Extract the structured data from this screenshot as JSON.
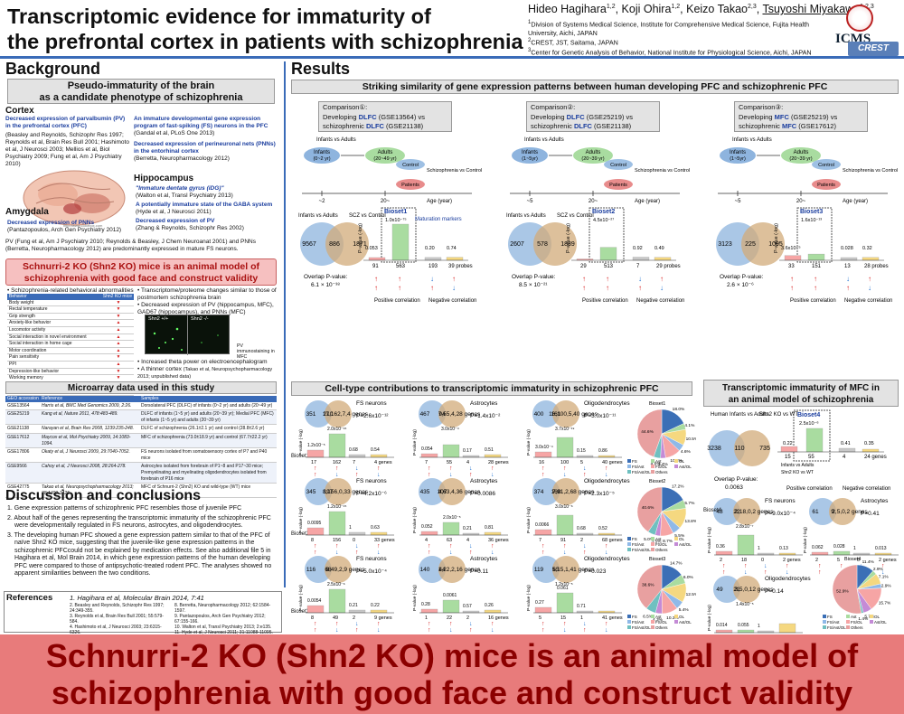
{
  "header": {
    "title_line1": "Transcriptomic evidence for immaturity of",
    "title_line2": "the prefrontal cortex in patients with schizophrenia",
    "authors_plain": "Hideo Hagihara",
    "authors_sup1": "1,2",
    "authors_mid": ", Koji Ohira",
    "authors_sup2": "1,2",
    "authors_mid2": ", Keizo Takao",
    "authors_sup3": "2,3",
    "authors_mid3": ", ",
    "authors_under": "Tsuyoshi Miyakawa",
    "authors_sup4": "1,2,3",
    "affil1": "Division of Systems Medical Science, Institute for Comprehensive Medical Science, Fujita Health University, Aichi, JAPAN",
    "affil2": "CREST, JST, Saitama, JAPAN",
    "affil3": "Center for Genetic Analysis of Behavior, National Institute for Physiological Science, Aichi, JAPAN",
    "logo1": "ICMS",
    "logo2": "CREST"
  },
  "background": {
    "heading": "Background",
    "box_title1": "Pseudo-immaturity of the brain",
    "box_title2": "as a candidate phenotype of schizophrenia",
    "cortex": "Cortex",
    "c1_title": "Decreased expression of parvalbumin (PV) in the prefrontal cortex (PFC)",
    "c1_refs": "(Beasley and Reynolds, Schizophr Res 1997; Reynolds et al, Brain Res Bull 2001; Hashimoto et al, J Neurosci 2003; Mellios et al, Biol Psychiatry 2009; Fung et al, Am J Psychiatry 2010)",
    "c2_title": "An immature developmental gene expression program of fast-spiking (FS) neurons in the PFC",
    "c2_refs": "(Gandal et al, PLoS One 2013)",
    "c3_title": "Decreased expression of perineuronal nets (PNNs) in the entorhinal cortex",
    "c3_refs": "(Berretta, Neuropharmacology 2012)",
    "hippocampus": "Hippocampus",
    "h1_title": "\"Immature dentate gyrus (iDG)\"",
    "h1_refs": "(Walton et al, Transl Psychiatry 2013)",
    "h2_title": "A potentially immature state of the GABA system",
    "h2_refs": "(Hyde et al, J Neurosci 2011)",
    "h3_title": "Decreased expression of PV",
    "h3_refs": "(Zhang & Reynolds, Schizophr Res 2002)",
    "amygdala": "Amygdala",
    "a1_title": "Decreased expression of PNNs",
    "a1_refs": "(Pantazopoulos, Arch Gen Psychiatry 2012)",
    "pv_note": "PV (Fung et al, Am J Psychiatry 2010; Reynolds & Beasley, J Chem Neuroanat 2001) and PNNs (Berretta, Neuropharmacology 2012) are predominantly expressed in mature FS neurons.",
    "brain_watermark": "http://www.colorbox.com"
  },
  "shn2": {
    "box_line1": "Schnurri-2 KO (Shn2 KO) mice is an animal model of",
    "box_line2": "schizophrenia with good face and construct validity",
    "bullet1": "Schizophrenia-related behavioral abnormalities",
    "table_h1": "Behavior",
    "table_h2": "Shn2 KO mice",
    "behaviors": [
      "Body weight",
      "Rectal temperature",
      "Grip strength",
      "Anxiety-like behavior",
      "Locomotor activity",
      "Social interaction in novel environment",
      "Social interaction in home cage",
      "Motor coordination",
      "Pain sensitivity",
      "PPI",
      "Depression-like behavior",
      "Working memory",
      "Reference memory",
      "Remote memory"
    ],
    "bullet2": "Transcriptome/proteome changes similar to those of postmortem schizophrenia brain",
    "bullet3": "Decreased expression of PV (hippocampus, MFC), GAD67 (hippocampus), and PNNs (MFC)",
    "img_label1": "Shn2 +/+",
    "img_label2": "Shn2 -/-",
    "img_caption": "PV immunostaining in MFC",
    "bullet4": "Increased theta power on electroencephalogram",
    "bullet5": "A thinner cortex",
    "bullet5_ref": "(Takao et al, Neuropsychopharmacology 2013; unpublished data)"
  },
  "microarray": {
    "heading": "Microarray data used in this study",
    "cols": [
      "GEO accession",
      "Reference",
      "Samples"
    ],
    "rows": [
      [
        "GSE13564",
        "Harris et al, BMC Med Genomics 2009, 2:26.",
        "Dorsolateral PFC (DLFC) of infants (0~2 yr) and adults (20~49 yr)"
      ],
      [
        "GSE25219",
        "Kang et al, Nature 2011, 478:483-489.",
        "DLFC of infants (1~5 yr) and adults (20~39 yr); Medial PFC (MFC) of infants (1~5 yr) and adults (20~39 yr)"
      ],
      [
        "GSE21138",
        "Narayan et al, Brain Res 2008, 1239:235-248.",
        "DLFC of schizophrenia (26.1±2.1 yr) and control (28.8±2.6 yr)"
      ],
      [
        "GSE17612",
        "Maycox et al, Mol Psychiatry 2009, 14:1083-1094.",
        "MFC of schizophrenia (73.0±18.9 yr) and control (67.7±22.2 yr)"
      ],
      [
        "GSE17806",
        "Okaty et al, J Neurosci 2009, 29:7040-7052.",
        "FS neurons isolated from somatosensory cortex of P7 and P40 mice"
      ],
      [
        "GSE9566",
        "Cahoy et al, J Neurosci 2008, 28:264-278.",
        "Astrocytes isolated from forebrain of P1~8 and P17~30 mice; Premyelinating and myelinating oligodendrocytes isolated from forebrain of P16 mice"
      ],
      [
        "GSE42775",
        "Takao et al, Neuropsychopharmacology 2013; 38:1409-1425.",
        "MFC of Schnurri-2 (Shn2) KO and wild-type (WT) mice"
      ]
    ]
  },
  "discussion": {
    "heading": "Discussion and conclusions",
    "items": [
      "1. Gene expression patterns of schizophrenic PFC resembles those of juvenile PFC",
      "2. About half of the genes representing the transcriptomic immaturity of the schizophrenic PFC were developmentally regulated in FS neurons, astrocytes, and oligodendrocytes.",
      "3. The developing human PFC showed a gene expression pattern similar to that of the PFC of naïve Shn2 KO mice, suggesting that the juvenile-like gene expression patterns in the schizophrenic PFCcould not be explained by medication effects. See also additional file 5 in Hagihara et al, Mol Brain 2014, in which gene expression patterns of the human developing PFC were compared to those of antipsychotic-treated rodent PFC. The analyses showed no apparent similarities between the two conditions."
    ]
  },
  "references": {
    "heading": "References",
    "first": "1. Hagihara et al, Molecular Brain 2014, 7:41",
    "col1": [
      "2. Beasley and Reynolds, Schizophr Res 1997; 24:349-355.",
      "3. Reynolds et al, Brain Res Bull 2001; 55:579-584.",
      "4. Hashimoto et al, J Neurosci 2003; 23:6315-6326.",
      "5. Mellios et al, Biol Psychiatry 2009; 65:1006-1014.",
      "6. Fung et al, Am J Psychiatry 2010; 167:1479-1488.",
      "7. Gandal et al, PLoS One 2013; 7:e41215."
    ],
    "col2": [
      "8. Berretta, Neuropharmacology 2012; 62:1584-1597.",
      "9. Pantazopoulos, Arch Gen Psychiatry 2012; 67:155-166.",
      "10. Walton et al, Transl Psychiatry 2013; 2:e135.",
      "11. Hyde et al, J Neurosci 2011; 31:11088-11095.",
      "12. Zhang & Reynolds, Schizophr Res 2002; 55:1-10.",
      "13. Takao et al, Neuropsychopharmacology 2013; 38:1409-1425."
    ]
  },
  "results": {
    "heading": "Results",
    "section1": "Striking similarity of gene expression patterns between human developing PFC and schizophrenic PFC",
    "section2": "Cell-type contributions to transcriptomic immaturity in schizophrenic PFC",
    "section3_line1": "Transcriptomic immaturity of MFC in",
    "section3_line2": "an animal model of schizophrenia"
  },
  "comparisons": [
    {
      "title": "Comparison①:",
      "line2a": "Developing ",
      "line2b": "DLFC",
      "line2c": " (GSE13564) vs",
      "line3a": "schizophrenic ",
      "line3b": "DLFC",
      "line3c": " (GSE21138)",
      "infants": "Infants",
      "infants_age": "(0~2 yr)",
      "adults": "Adults",
      "adults_age": "(20~49 yr)",
      "ia_label": "Infants vs Adults",
      "sc_label": "Schizophrenia vs Control",
      "control": "Control",
      "patients": "Patients",
      "tick1": "~2",
      "tick2": "20~",
      "age_label": "Age (year)",
      "v_left": "Infants vs Adults",
      "v_right": "SCZ vs Control",
      "n1": "9567",
      "n2": "886",
      "n3": "1871",
      "overlap": "Overlap P-value:",
      "overlap_p": "6.1 × 10⁻³⁸",
      "bioset": "Bioset1",
      "topp": "1.0x10⁻⁷⁵",
      "p1": "0.053",
      "p3": "0.20",
      "p4": "0.74",
      "c1": "91",
      "c2": "563",
      "c3": "193",
      "c4": "39 probes",
      "pos": "Positive correlation",
      "neg": "Negative correlation",
      "marker": "Maturation markers",
      "h_vals": [
        0.053,
        75,
        0.2,
        0.74
      ]
    },
    {
      "title": "Comparison②:",
      "line2a": "Developing ",
      "line2b": "DLFC",
      "line2c": " (GSE25219) vs",
      "line3a": "schizophrenic ",
      "line3b": "DLFC",
      "line3c": " (GSE21138)",
      "infants": "Infants",
      "infants_age": "(1~5yr)",
      "adults": "Adults",
      "adults_age": "(20~39 yr)",
      "ia_label": "Infants vs Adults",
      "sc_label": "Schizophrenia vs Control",
      "control": "Control",
      "patients": "Patients",
      "tick1": "~5",
      "tick2": "20~",
      "age_label": "Age (year)",
      "v_left": "Infants vs Adults",
      "v_right": "SCZ vs Control",
      "n1": "2607",
      "n2": "578",
      "n3": "1839",
      "overlap": "Overlap P-value:",
      "overlap_p": "8.5 × 10⁻²¹",
      "bioset": "Bioset2",
      "topp": "4.5x10⁻²⁷",
      "p1": "",
      "p3": "0.92",
      "p4": "0.49",
      "c1": "29",
      "c2": "513",
      "c3": "7",
      "c4": "29 probes",
      "pos": "Positive correlation",
      "neg": "Negative correlation",
      "marker": "",
      "h_vals": [
        0,
        27,
        0.92,
        0.49
      ]
    },
    {
      "title": "Comparison③:",
      "line2a": "Developing ",
      "line2b": "MFC",
      "line2c": " (GSE25219) vs",
      "line3a": "schizophrenic ",
      "line3b": "MFC",
      "line3c": " (GSE17612)",
      "infants": "Infants",
      "infants_age": "(1~5yr)",
      "adults": "Adults",
      "adults_age": "(20~39 yr)",
      "ia_label": "Infants vs Adults",
      "sc_label": "Schizophrenia vs Control",
      "control": "Control",
      "patients": "Patients",
      "tick1": "~5",
      "tick2": "20~",
      "age_label": "Age (year)",
      "v_left": "",
      "v_right": "",
      "n1": "3123",
      "n2": "225",
      "n3": "1095",
      "overlap": "Overlap P-value:",
      "overlap_p": "2.6 × 10⁻⁶",
      "bioset": "Bioset3",
      "topp": "1.6x10⁻¹³",
      "p1": "3.6x10⁻⁵",
      "p3": "0.028",
      "p4": "0.32",
      "c1": "33",
      "c2": "151",
      "c3": "13",
      "c4": "28 probes",
      "pos": "Positive correlation",
      "neg": "Negative correlation",
      "marker": "",
      "h_vals": [
        4.4,
        13,
        0.028,
        0.32
      ]
    }
  ],
  "celltype": {
    "rows": [
      {
        "bioset": "Bioset1",
        "fs": {
          "a": "351",
          "b": "210",
          "c": [
            "17",
            "162",
            "7",
            "4 genes"
          ],
          "p": "P=2.6x10⁻¹²",
          "top": "2.0x10⁻¹⁶",
          "v": [
            "1.2x10⁻⁵",
            "",
            "0.68",
            "0.54"
          ]
        },
        "ast": {
          "a": "467",
          "b": "94",
          "c": [
            "7",
            "55",
            "4",
            "28 genes"
          ],
          "p": "P=1.4x10⁻²",
          "top": "3.0x10⁻⁴",
          "v": [
            "0.054",
            "",
            "0.17",
            "0.51"
          ]
        },
        "ol": {
          "a": "400",
          "b": "161",
          "c": [
            "16",
            "100",
            "5",
            "40 genes"
          ],
          "p": "P=3.0x10⁻¹¹",
          "top": "3.7x10⁻¹⁹",
          "v": [
            "3.0x10⁻⁴",
            "",
            "0.15",
            "0.86"
          ]
        },
        "pie": [
          "18.0%",
          "4.1%",
          "10.5%",
          "4.6%",
          "10.2%",
          "3.4%",
          "4.6%",
          "44.6%"
        ]
      },
      {
        "bioset": "Bioset2",
        "fs": {
          "a": "345",
          "b": "197",
          "c": [
            "8",
            "156",
            "0",
            "33 genes"
          ],
          "p": "P=4.2x10⁻⁶",
          "top": "1.2x10⁻¹⁵",
          "v": [
            "0.0095",
            "",
            "1",
            "0.63"
          ]
        },
        "ast": {
          "a": "435",
          "b": "107",
          "c": [
            "4",
            "63",
            "4",
            "36 genes"
          ],
          "p": "P=0.0086",
          "top": "",
          "v": [
            "0.052",
            "2.0x10⁻⁵",
            "0.21",
            "0.81"
          ]
        },
        "ol": {
          "a": "374",
          "b": "168",
          "c": [
            "7",
            "91",
            "2",
            "68 genes"
          ],
          "p": "P=2.3x10⁻⁵",
          "top": "3.0x10⁻⁶",
          "v": [
            "0.0066",
            "",
            "0.68",
            "0.52"
          ]
        },
        "pie": [
          "17.2%",
          "5.7%",
          "13.8%",
          "5.5%",
          "8.7%",
          "3.5%",
          "5.0%",
          "40.6%"
        ]
      },
      {
        "bioset": "Bioset3",
        "fs": {
          "a": "116",
          "b": "68",
          "c": [
            "8",
            "49",
            "2",
            "9 genes"
          ],
          "p": "P=5.0x10⁻⁴",
          "top": "2.5x10⁻⁶",
          "v": [
            "0.0054",
            "",
            "0.21",
            "0.22"
          ]
        },
        "ast": {
          "a": "140",
          "b": "44",
          "c": [
            "1",
            "22",
            "2",
            "16 genes"
          ],
          "p": "P=0.11",
          "top": "",
          "v": [
            "0.28",
            "0.0061",
            "0.57",
            "0.26"
          ]
        },
        "ol": {
          "a": "119",
          "b": "65",
          "c": [
            "5",
            "15",
            "1",
            "41 genes"
          ],
          "p": "P=0.023",
          "top": "1.2x10⁻⁵",
          "v": [
            "0.27",
            "0.061",
            "0.71",
            ""
          ]
        },
        "pie": [
          "14.7%",
          "6.0%",
          "12.5%",
          "5.4%",
          "10.3%",
          "4.3%",
          "6.5%",
          "38.6%"
        ]
      }
    ],
    "fs": "FS neurons",
    "ast": "Astrocytes",
    "ol": "Oligodendrocytes",
    "pval": "P-value (-log)",
    "legend": [
      "FS",
      "Ast",
      "OL",
      "FS/Ast",
      "FS/OL",
      "Ast/OL",
      "FS/Ast/OL",
      "Others"
    ]
  },
  "mouse": {
    "v_left": "Human Infants vs Adults",
    "v_right": "Shn2 KO vs WT",
    "n1": "3238",
    "n2": "110",
    "n3": "735",
    "overlap": "Overlap P-value:",
    "overlap_p": "0.0063",
    "bioset": "Bioset4",
    "topp": "2.5x10⁻⁶",
    "v": [
      "0.22",
      "",
      "0.41",
      "0.35"
    ],
    "c": [
      "15",
      "55",
      "4",
      "24 genes"
    ],
    "r_ia": "Infants vs Adults",
    "r_ko": "Shn2 KO vs WT",
    "pos": "Positive correlation",
    "neg": "Negative correlation",
    "fs": {
      "a": "48",
      "b": "22",
      "c": [
        "2",
        "18",
        "0",
        "2 genes"
      ],
      "p": "P=9.0x10⁻⁴",
      "top": "2.8x10⁻⁷",
      "v": [
        "0.36",
        "",
        "1",
        "0.13"
      ]
    },
    "ast": {
      "a": "61",
      "b": "9",
      "c": [
        "2",
        "5",
        "0",
        "2 genes"
      ],
      "p": "P=0.41",
      "top": "",
      "v": [
        "0.062",
        "0.028",
        "1",
        "0.013"
      ]
    },
    "ol": {
      "a": "49",
      "b": "21",
      "c": [
        "3",
        "5",
        "0",
        "12 genes"
      ],
      "p": "P=0.14",
      "top": "1.4x10⁻⁵",
      "v": [
        "0.014",
        "0.055",
        "1",
        ""
      ]
    },
    "pie": [
      "11.4%",
      "2.9%",
      "7.1%",
      "2.9%",
      "15.7%",
      "5.7%",
      "1.4%",
      "52.9%"
    ]
  },
  "banner": {
    "line1": "Schnurri-2 KO (Shn2 KO) mice is an animal model of",
    "line2": "schizophrenia with good face and construct validity"
  },
  "colors": {
    "accent": "#3a6bb8",
    "up": "#d61f1f",
    "down": "#1e6fd0",
    "venn_left": "#8eb4de",
    "venn_right": "#d1ab7a",
    "banner": "#e87b7b"
  }
}
